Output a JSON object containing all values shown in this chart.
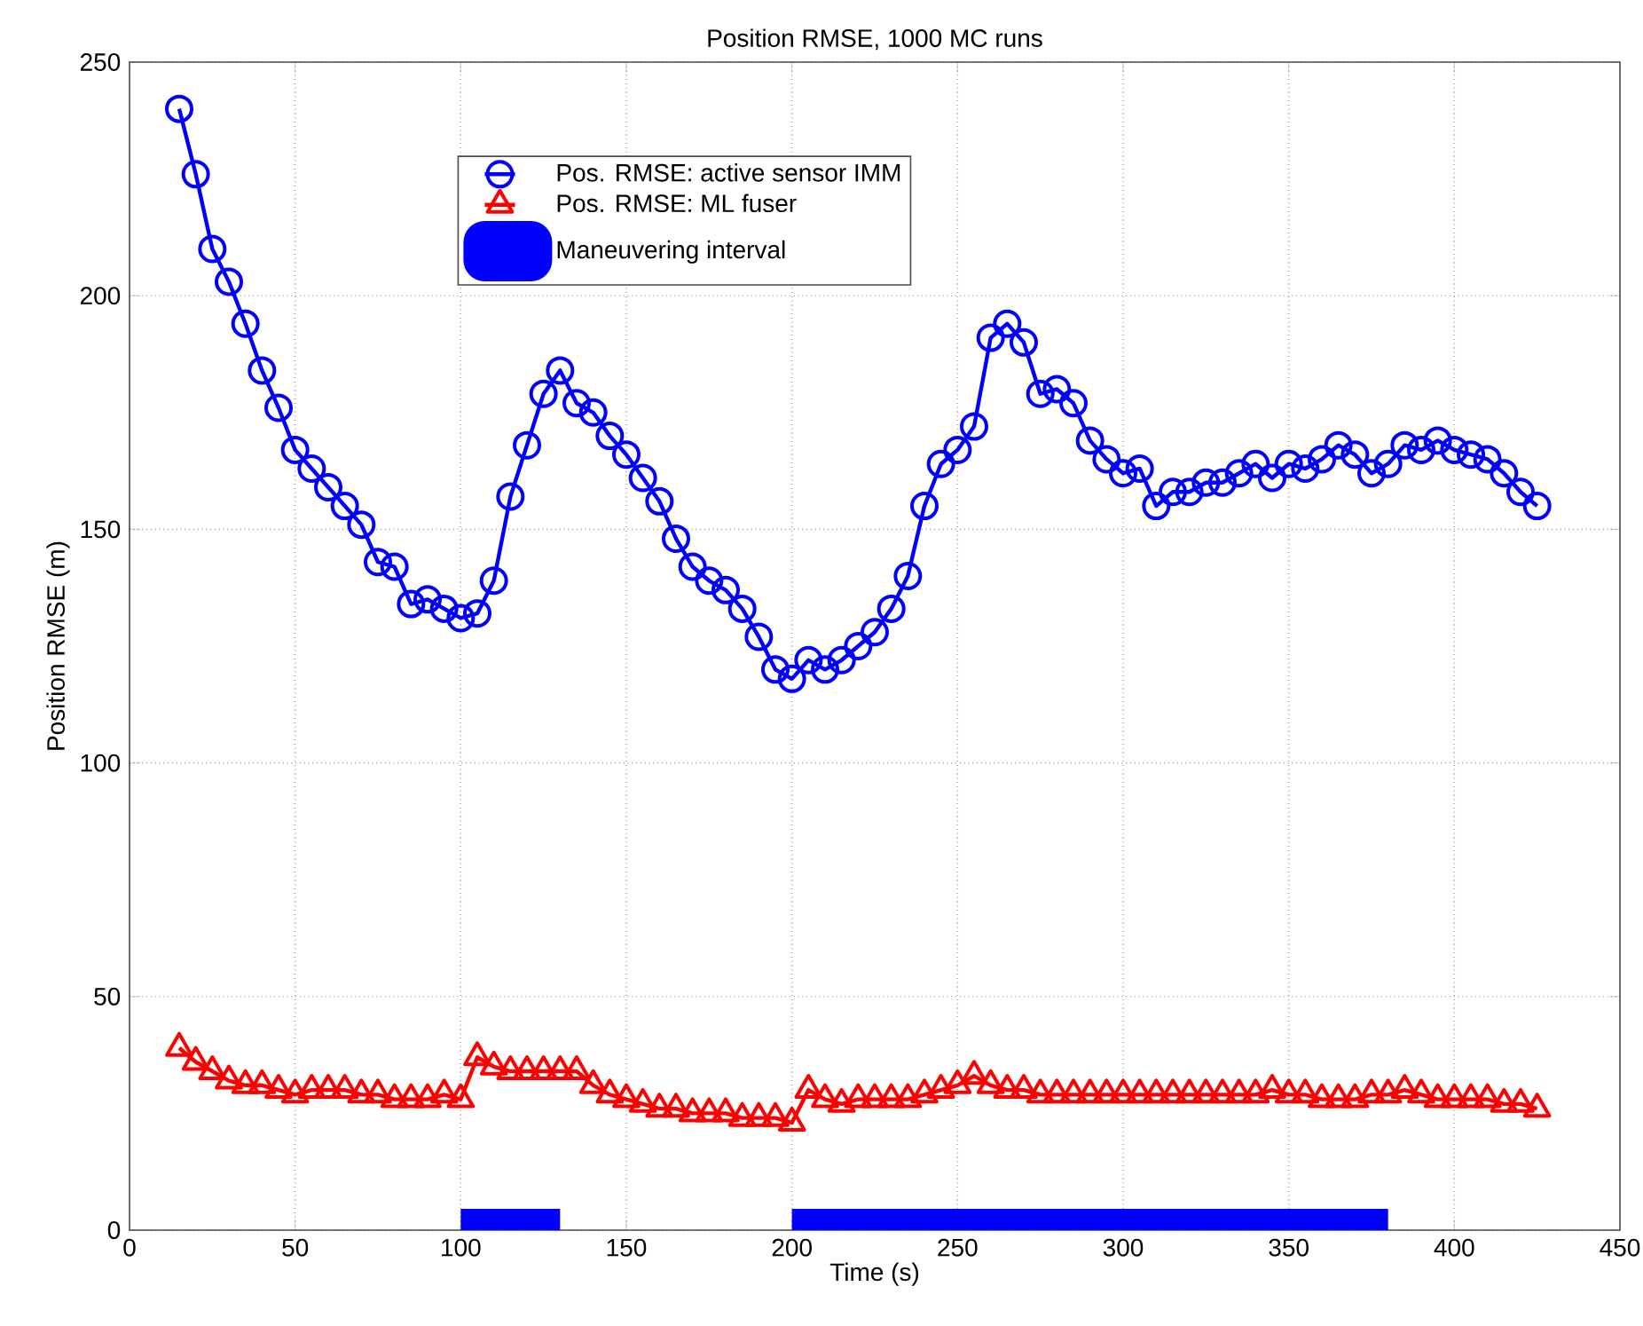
{
  "chart_data": {
    "type": "line",
    "title": "Position RMSE, 1000 MC runs",
    "xlabel": "Time (s)",
    "ylabel": "Position RMSE (m)",
    "x": [
      15,
      20,
      25,
      30,
      35,
      40,
      45,
      50,
      55,
      60,
      65,
      70,
      75,
      80,
      85,
      90,
      95,
      100,
      105,
      110,
      115,
      120,
      125,
      130,
      135,
      140,
      145,
      150,
      155,
      160,
      165,
      170,
      175,
      180,
      185,
      190,
      195,
      200,
      205,
      210,
      215,
      220,
      225,
      230,
      235,
      240,
      245,
      250,
      255,
      260,
      265,
      270,
      275,
      280,
      285,
      290,
      295,
      300,
      305,
      310,
      315,
      320,
      325,
      330,
      335,
      340,
      345,
      350,
      355,
      360,
      365,
      370,
      375,
      380,
      385,
      390,
      395,
      400,
      405,
      410,
      415,
      420,
      425
    ],
    "series": [
      {
        "name": "Pos. RMSE: active sensor IMM",
        "color": "#0000ff",
        "marker": "circle",
        "values": [
          240,
          226,
          210,
          203,
          194,
          184,
          176,
          167,
          163,
          159,
          155,
          151,
          143,
          142,
          134,
          135,
          133,
          131,
          132,
          139,
          157,
          168,
          179,
          184,
          177,
          175,
          170,
          166,
          161,
          156,
          148,
          142,
          139,
          137,
          133,
          127,
          120,
          118,
          122,
          120,
          122,
          125,
          128,
          133,
          140,
          155,
          164,
          167,
          172,
          191,
          194,
          190,
          179,
          180,
          177,
          169,
          165,
          162,
          163,
          155,
          158,
          158,
          160,
          160,
          162,
          164,
          161,
          164,
          163,
          165,
          168,
          166,
          162,
          164,
          168,
          167,
          169,
          167,
          166,
          165,
          162,
          158,
          155
        ]
      },
      {
        "name": "Pos. RMSE: ML fuser",
        "color": "#ff0000",
        "marker": "triangle",
        "values": [
          39,
          36,
          34,
          32,
          31,
          31,
          30,
          29,
          30,
          30,
          30,
          29,
          29,
          28,
          28,
          28,
          29,
          28,
          37,
          35,
          34,
          34,
          34,
          34,
          34,
          31,
          29,
          28,
          27,
          26,
          26,
          25,
          25,
          25,
          24,
          24,
          24,
          23,
          30,
          28,
          27,
          28,
          28,
          28,
          28,
          29,
          30,
          31,
          33,
          31,
          30,
          30,
          29,
          29,
          29,
          29,
          29,
          29,
          29,
          29,
          29,
          29,
          29,
          29,
          29,
          29,
          30,
          29,
          29,
          28,
          28,
          28,
          29,
          29,
          30,
          29,
          28,
          28,
          28,
          28,
          27,
          27,
          26
        ]
      },
      {
        "name": "Maneuvering interval",
        "color": "#0000ff",
        "marker": "none",
        "x": [
          100,
          130
        ],
        "values": [
          0,
          0
        ]
      },
      {
        "color": "#0000ff",
        "marker": "none",
        "x": [
          200,
          380
        ],
        "values": [
          0,
          0
        ]
      }
    ],
    "xlim": [
      0,
      450
    ],
    "xticks": [
      0,
      50,
      100,
      150,
      200,
      250,
      300,
      350,
      400,
      450
    ],
    "ylim": [
      0,
      250
    ],
    "yticks": [
      0,
      50,
      100,
      150,
      200,
      250
    ],
    "grid": true,
    "legend": "top left",
    "line_style": "solid"
  }
}
